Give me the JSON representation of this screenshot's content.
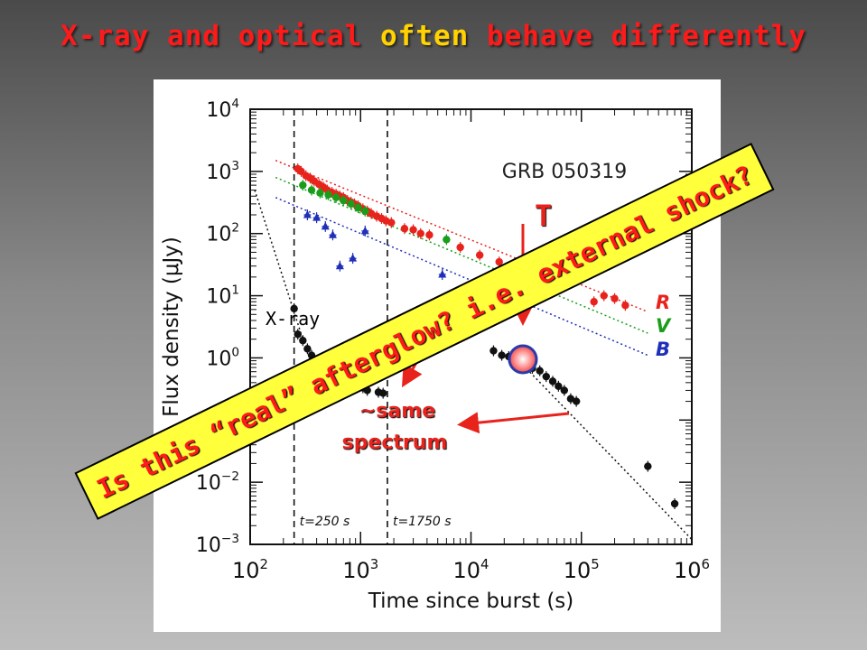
{
  "slide": {
    "title_part1": "X-ray and optical ",
    "title_highlight": "often",
    "title_part2": " behave differently"
  },
  "annotations": {
    "xray_label": "X-ray",
    "t_label": "T",
    "same_spectrum_line1": "~same",
    "same_spectrum_line2": "spectrum",
    "banner": "Is this “real” afterglow? i.e. external shock?",
    "accent_red": "#e8231c",
    "banner_fill": "#ffff3c"
  },
  "chart_data": {
    "type": "scatter",
    "title": "GRB 050319",
    "xlabel": "Time since burst (s)",
    "ylabel": "Flux density (μJy)",
    "x_scale": "log",
    "y_scale": "log",
    "xlim": [
      100,
      1000000
    ],
    "ylim": [
      0.001,
      10000
    ],
    "x_ticks": [
      {
        "v": 100,
        "b": "10",
        "e": "2"
      },
      {
        "v": 1000,
        "b": "10",
        "e": "3"
      },
      {
        "v": 10000,
        "b": "10",
        "e": "4"
      },
      {
        "v": 100000,
        "b": "10",
        "e": "5"
      },
      {
        "v": 1000000,
        "b": "10",
        "e": "6"
      }
    ],
    "y_ticks": [
      {
        "v": 0.001,
        "b": "10",
        "e": "−3"
      },
      {
        "v": 0.01,
        "b": "10",
        "e": "−2"
      },
      {
        "v": 0.1,
        "b": "10",
        "e": "−1"
      },
      {
        "v": 1,
        "b": "10",
        "e": "0"
      },
      {
        "v": 10,
        "b": "10",
        "e": "1"
      },
      {
        "v": 100,
        "b": "10",
        "e": "2"
      },
      {
        "v": 1000,
        "b": "10",
        "e": "3"
      },
      {
        "v": 10000,
        "b": "10",
        "e": "4"
      }
    ],
    "vlines": [
      {
        "x": 250,
        "label": "t=250 s"
      },
      {
        "x": 1750,
        "label": "t=1750 s"
      }
    ],
    "legend": [
      {
        "label": "R",
        "color": "#e8231c"
      },
      {
        "label": "V",
        "color": "#1a9e1a"
      },
      {
        "label": "B",
        "color": "#1f2fb8"
      }
    ],
    "series": [
      {
        "name": "X-ray",
        "color": "#111111",
        "points": [
          {
            "x": 250,
            "y": 6.2
          },
          {
            "x": 270,
            "y": 2.4
          },
          {
            "x": 300,
            "y": 1.9
          },
          {
            "x": 330,
            "y": 1.4
          },
          {
            "x": 360,
            "y": 1.1
          },
          {
            "x": 400,
            "y": 0.8
          },
          {
            "x": 450,
            "y": 0.65
          },
          {
            "x": 500,
            "y": 0.55
          },
          {
            "x": 560,
            "y": 0.5
          },
          {
            "x": 620,
            "y": 0.46
          },
          {
            "x": 700,
            "y": 0.44
          },
          {
            "x": 780,
            "y": 0.4
          },
          {
            "x": 850,
            "y": 0.38
          },
          {
            "x": 950,
            "y": 0.36
          },
          {
            "x": 1050,
            "y": 0.33
          },
          {
            "x": 1150,
            "y": 0.3
          },
          {
            "x": 1300,
            "y": 0.8
          },
          {
            "x": 1450,
            "y": 0.28
          },
          {
            "x": 1600,
            "y": 0.27
          },
          {
            "x": 16000,
            "y": 1.3
          },
          {
            "x": 19000,
            "y": 1.1
          },
          {
            "x": 22000,
            "y": 1.05
          },
          {
            "x": 25000,
            "y": 0.95
          },
          {
            "x": 28000,
            "y": 0.85
          },
          {
            "x": 32000,
            "y": 0.75
          },
          {
            "x": 36000,
            "y": 0.68
          },
          {
            "x": 42000,
            "y": 0.62
          },
          {
            "x": 48000,
            "y": 0.5
          },
          {
            "x": 55000,
            "y": 0.42
          },
          {
            "x": 62000,
            "y": 0.35
          },
          {
            "x": 70000,
            "y": 0.3
          },
          {
            "x": 80000,
            "y": 0.22
          },
          {
            "x": 90000,
            "y": 0.2
          },
          {
            "x": 400000,
            "y": 0.018
          },
          {
            "x": 700000,
            "y": 0.0045
          }
        ]
      },
      {
        "name": "R",
        "color": "#e8231c",
        "points": [
          {
            "x": 270,
            "y": 1100
          },
          {
            "x": 290,
            "y": 1000
          },
          {
            "x": 320,
            "y": 850
          },
          {
            "x": 350,
            "y": 780
          },
          {
            "x": 380,
            "y": 700
          },
          {
            "x": 420,
            "y": 620
          },
          {
            "x": 460,
            "y": 560
          },
          {
            "x": 500,
            "y": 500
          },
          {
            "x": 550,
            "y": 460
          },
          {
            "x": 600,
            "y": 430
          },
          {
            "x": 650,
            "y": 400
          },
          {
            "x": 700,
            "y": 380
          },
          {
            "x": 760,
            "y": 340
          },
          {
            "x": 820,
            "y": 320
          },
          {
            "x": 880,
            "y": 300
          },
          {
            "x": 950,
            "y": 280
          },
          {
            "x": 1050,
            "y": 250
          },
          {
            "x": 1150,
            "y": 230
          },
          {
            "x": 1250,
            "y": 210
          },
          {
            "x": 1400,
            "y": 190
          },
          {
            "x": 1550,
            "y": 175
          },
          {
            "x": 1700,
            "y": 160
          },
          {
            "x": 1900,
            "y": 150
          },
          {
            "x": 2500,
            "y": 120
          },
          {
            "x": 3000,
            "y": 115
          },
          {
            "x": 3500,
            "y": 100
          },
          {
            "x": 4200,
            "y": 95
          },
          {
            "x": 8000,
            "y": 60
          },
          {
            "x": 12000,
            "y": 45
          },
          {
            "x": 18000,
            "y": 35
          },
          {
            "x": 130000,
            "y": 8
          },
          {
            "x": 160000,
            "y": 10
          },
          {
            "x": 200000,
            "y": 9
          },
          {
            "x": 250000,
            "y": 7
          }
        ]
      },
      {
        "name": "V",
        "color": "#1a9e1a",
        "points": [
          {
            "x": 300,
            "y": 600
          },
          {
            "x": 360,
            "y": 500
          },
          {
            "x": 430,
            "y": 450
          },
          {
            "x": 510,
            "y": 420
          },
          {
            "x": 600,
            "y": 380
          },
          {
            "x": 700,
            "y": 340
          },
          {
            "x": 820,
            "y": 300
          },
          {
            "x": 950,
            "y": 260
          },
          {
            "x": 1100,
            "y": 230
          },
          {
            "x": 6000,
            "y": 80
          },
          {
            "x": 40000,
            "y": 30
          }
        ]
      },
      {
        "name": "B",
        "color": "#1f2fb8",
        "points": [
          {
            "x": 330,
            "y": 200
          },
          {
            "x": 400,
            "y": 180
          },
          {
            "x": 480,
            "y": 130
          },
          {
            "x": 560,
            "y": 95
          },
          {
            "x": 650,
            "y": 30
          },
          {
            "x": 850,
            "y": 40
          },
          {
            "x": 1100,
            "y": 110
          },
          {
            "x": 5500,
            "y": 22
          }
        ]
      }
    ],
    "fits": [
      {
        "name": "X-ray steep decay",
        "color": "#111111",
        "from": {
          "x": 110,
          "y": 500
        },
        "to": {
          "x": 300,
          "y": 2.0
        }
      },
      {
        "name": "X-ray late decay",
        "color": "#111111",
        "from": {
          "x": 30000,
          "y": 0.75
        },
        "to": {
          "x": 1000000,
          "y": 0.0012
        }
      },
      {
        "name": "R fit",
        "color": "#e8231c",
        "from": {
          "x": 170,
          "y": 1500
        },
        "to": {
          "x": 400000,
          "y": 5.5
        }
      },
      {
        "name": "V fit",
        "color": "#1a9e1a",
        "from": {
          "x": 170,
          "y": 800
        },
        "to": {
          "x": 400000,
          "y": 2.5
        }
      },
      {
        "name": "B fit",
        "color": "#1f2fb8",
        "from": {
          "x": 170,
          "y": 380
        },
        "to": {
          "x": 400000,
          "y": 1.1
        }
      }
    ]
  }
}
